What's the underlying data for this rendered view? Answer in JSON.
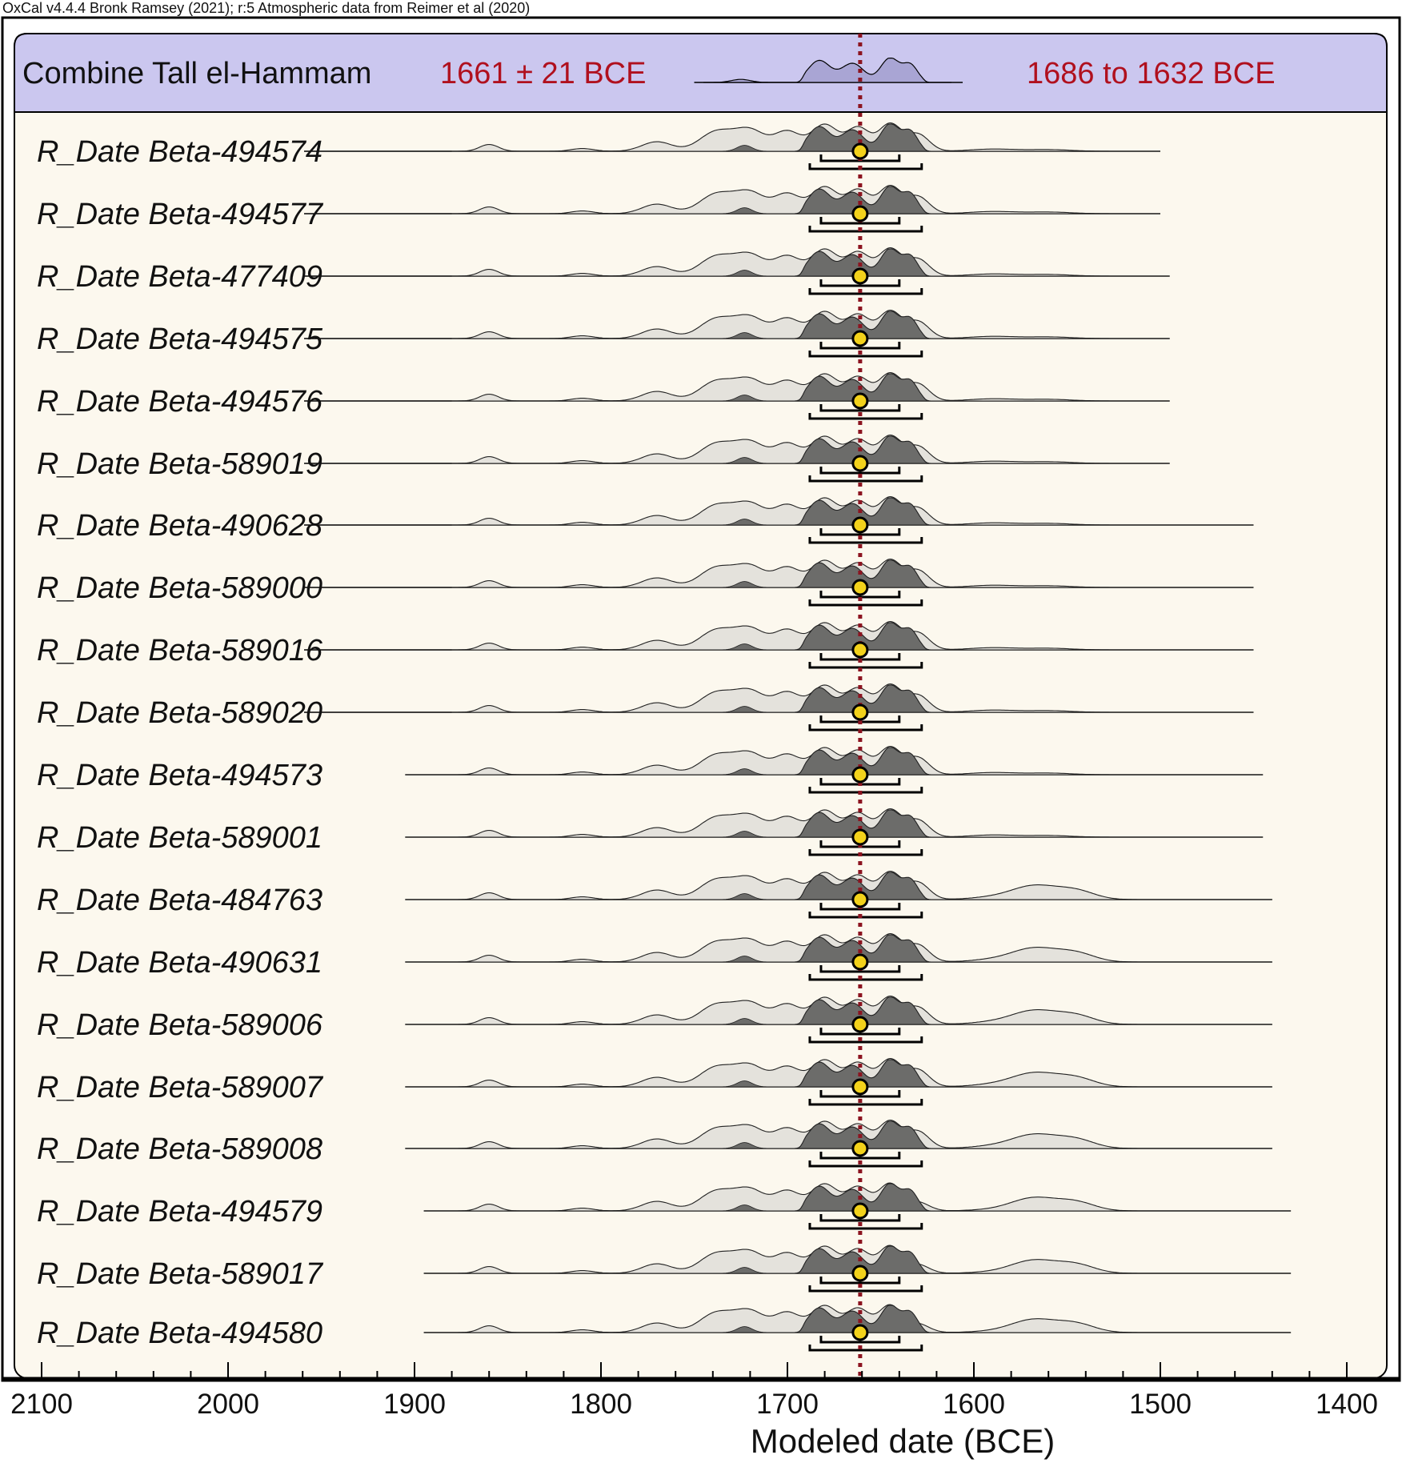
{
  "header_note": "OxCal v4.4.4 Bronk Ramsey (2021); r:5 Atmospheric data from Reimer et al (2020)",
  "colors": {
    "panel_bg": "#fcf8ee",
    "combine_band": "#cbc7ef",
    "prior_fill": "#e4e2dc",
    "posterior_fill": "#6c6c6a",
    "median_line": "#8c1420",
    "marker_fill": "#f3d21b",
    "highlight_text": "#b0101e"
  },
  "chart_data": {
    "type": "oxcal-multiplot",
    "xlabel": "Modeled date (BCE)",
    "x_ticks": [
      2100,
      2000,
      1900,
      1800,
      1700,
      1600,
      1500,
      1400
    ],
    "xlim": [
      2100,
      1400
    ],
    "axis_reversed": false,
    "combine": {
      "name": "Combine Tall el-Hammam",
      "mean_label": "1661 ± 21 BCE",
      "range_label": "1686 to 1632 BCE",
      "mean": 1661,
      "sd": 21,
      "range_95": [
        1686,
        1632
      ]
    },
    "median_marker": 1661,
    "sigma1_range": [
      1682,
      1640
    ],
    "sigma2_range": [
      1688,
      1628
    ],
    "dates": [
      {
        "name": "R_Date Beta-494574",
        "span": [
          1880,
          1500
        ]
      },
      {
        "name": "R_Date Beta-494577",
        "span": [
          1880,
          1500
        ]
      },
      {
        "name": "R_Date Beta-477409",
        "span": [
          1880,
          1495
        ]
      },
      {
        "name": "R_Date Beta-494575",
        "span": [
          1880,
          1495
        ]
      },
      {
        "name": "R_Date Beta-494576",
        "span": [
          1880,
          1495
        ]
      },
      {
        "name": "R_Date Beta-589019",
        "span": [
          1880,
          1495
        ]
      },
      {
        "name": "R_Date Beta-490628",
        "span": [
          1880,
          1450
        ]
      },
      {
        "name": "R_Date Beta-589000",
        "span": [
          1880,
          1450
        ]
      },
      {
        "name": "R_Date Beta-589016",
        "span": [
          1880,
          1450
        ]
      },
      {
        "name": "R_Date Beta-589020",
        "span": [
          1880,
          1450
        ]
      },
      {
        "name": "R_Date Beta-494573",
        "span": [
          1905,
          1445
        ]
      },
      {
        "name": "R_Date Beta-589001",
        "span": [
          1905,
          1445
        ]
      },
      {
        "name": "R_Date Beta-484763",
        "span": [
          1905,
          1440
        ]
      },
      {
        "name": "R_Date Beta-490631",
        "span": [
          1905,
          1440
        ]
      },
      {
        "name": "R_Date Beta-589006",
        "span": [
          1905,
          1440
        ]
      },
      {
        "name": "R_Date Beta-589007",
        "span": [
          1905,
          1440
        ]
      },
      {
        "name": "R_Date Beta-589008",
        "span": [
          1905,
          1440
        ]
      },
      {
        "name": "R_Date Beta-494579",
        "span": [
          1895,
          1430
        ]
      },
      {
        "name": "R_Date Beta-589017",
        "span": [
          1895,
          1430
        ]
      },
      {
        "name": "R_Date Beta-494580",
        "span": [
          1895,
          1430
        ]
      }
    ]
  }
}
